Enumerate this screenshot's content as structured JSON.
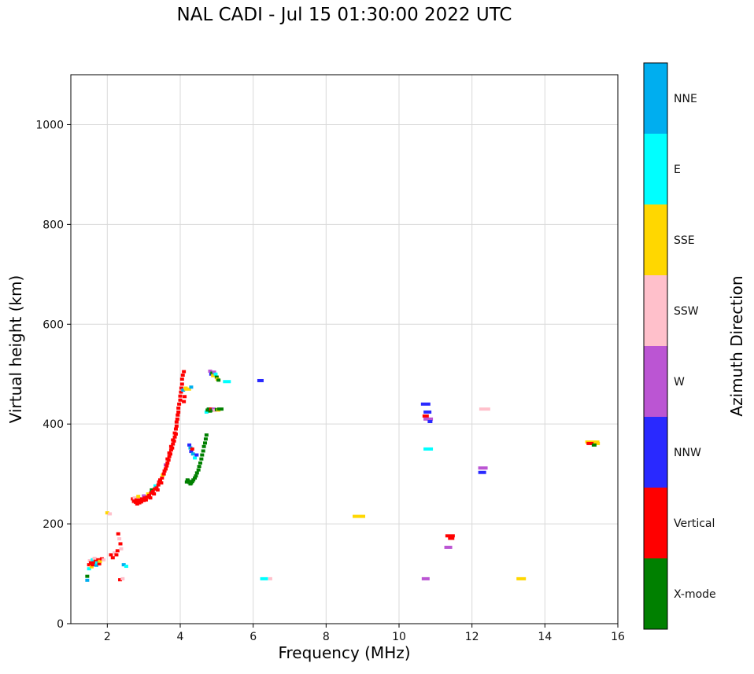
{
  "chart_data": {
    "type": "scatter",
    "title": "NAL CADI - Jul 15 01:30:00 2022 UTC",
    "xlabel": "Frequency (MHz)",
    "ylabel": "Virtual height (km)",
    "colorbar_title": "Azimuth Direction",
    "xlim": [
      1,
      16
    ],
    "ylim": [
      0,
      1100
    ],
    "xticks": [
      2,
      4,
      6,
      8,
      10,
      12,
      14,
      16
    ],
    "yticks": [
      0,
      200,
      400,
      600,
      800,
      1000
    ],
    "style": {
      "grid": "#d9d9d9",
      "axis": "#000000",
      "background": "#ffffff"
    },
    "categories": [
      {
        "name": "NNE",
        "color": "#00aeef"
      },
      {
        "name": "E",
        "color": "#00ffff"
      },
      {
        "name": "SSE",
        "color": "#ffd700"
      },
      {
        "name": "SSW",
        "color": "#ffc0cb"
      },
      {
        "name": "W",
        "color": "#bb55d3"
      },
      {
        "name": "NNW",
        "color": "#2929ff"
      },
      {
        "name": "Vertical",
        "color": "#ff0000"
      },
      {
        "name": "X-mode",
        "color": "#008000"
      }
    ],
    "points": [
      [
        1.45,
        95,
        "X-mode"
      ],
      [
        1.45,
        87,
        "NNE"
      ],
      [
        1.5,
        118,
        "Vertical"
      ],
      [
        1.5,
        110,
        "E"
      ],
      [
        1.52,
        126,
        "SSW"
      ],
      [
        1.55,
        122,
        "Vertical"
      ],
      [
        1.57,
        114,
        "SSE"
      ],
      [
        1.6,
        128,
        "E"
      ],
      [
        1.6,
        118,
        "Vertical"
      ],
      [
        1.63,
        122,
        "Vertical"
      ],
      [
        1.65,
        131,
        "SSW"
      ],
      [
        1.68,
        125,
        "Vertical"
      ],
      [
        1.7,
        117,
        "NNE"
      ],
      [
        1.72,
        122,
        "E"
      ],
      [
        1.75,
        128,
        "Vertical"
      ],
      [
        1.78,
        120,
        "Vertical"
      ],
      [
        1.8,
        125,
        "SSE"
      ],
      [
        1.85,
        130,
        "Vertical"
      ],
      [
        1.9,
        128,
        "SSW"
      ],
      [
        2.0,
        222,
        "SSE"
      ],
      [
        2.07,
        220,
        "SSW"
      ],
      [
        2.1,
        138,
        "Vertical"
      ],
      [
        2.15,
        132,
        "Vertical"
      ],
      [
        2.2,
        142,
        "SSW"
      ],
      [
        2.25,
        138,
        "Vertical"
      ],
      [
        2.28,
        146,
        "Vertical"
      ],
      [
        2.3,
        180,
        "Vertical"
      ],
      [
        2.33,
        170,
        "SSW"
      ],
      [
        2.36,
        160,
        "Vertical"
      ],
      [
        2.38,
        150,
        "SSW"
      ],
      [
        2.35,
        88,
        "Vertical"
      ],
      [
        2.42,
        90,
        "SSW"
      ],
      [
        2.45,
        118,
        "NNE"
      ],
      [
        2.52,
        115,
        "E"
      ],
      [
        2.7,
        250,
        "Vertical"
      ],
      [
        2.73,
        245,
        "Vertical"
      ],
      [
        2.75,
        252,
        "SSW"
      ],
      [
        2.78,
        243,
        "Vertical"
      ],
      [
        2.8,
        248,
        "Vertical"
      ],
      [
        2.82,
        240,
        "Vertical"
      ],
      [
        2.85,
        246,
        "Vertical"
      ],
      [
        2.85,
        255,
        "SSE"
      ],
      [
        2.88,
        242,
        "Vertical"
      ],
      [
        2.9,
        248,
        "Vertical"
      ],
      [
        2.93,
        244,
        "Vertical"
      ],
      [
        2.95,
        250,
        "Vertical"
      ],
      [
        3.0,
        247,
        "Vertical"
      ],
      [
        3.0,
        256,
        "W"
      ],
      [
        3.03,
        252,
        "Vertical"
      ],
      [
        3.06,
        248,
        "Vertical"
      ],
      [
        3.1,
        254,
        "Vertical"
      ],
      [
        3.12,
        260,
        "SSE"
      ],
      [
        3.15,
        257,
        "Vertical"
      ],
      [
        3.18,
        252,
        "Vertical"
      ],
      [
        3.2,
        262,
        "Vertical"
      ],
      [
        3.22,
        268,
        "X-mode"
      ],
      [
        3.25,
        265,
        "Vertical"
      ],
      [
        3.28,
        260,
        "Vertical"
      ],
      [
        3.3,
        270,
        "Vertical"
      ],
      [
        3.32,
        276,
        "E"
      ],
      [
        3.35,
        272,
        "Vertical"
      ],
      [
        3.38,
        268,
        "Vertical"
      ],
      [
        3.4,
        278,
        "Vertical"
      ],
      [
        3.42,
        284,
        "Vertical"
      ],
      [
        3.45,
        288,
        "Vertical"
      ],
      [
        3.48,
        282,
        "Vertical"
      ],
      [
        3.5,
        292,
        "Vertical"
      ],
      [
        3.52,
        298,
        "SSE"
      ],
      [
        3.55,
        300,
        "Vertical"
      ],
      [
        3.57,
        306,
        "Vertical"
      ],
      [
        3.6,
        310,
        "Vertical"
      ],
      [
        3.6,
        318,
        "W"
      ],
      [
        3.63,
        316,
        "Vertical"
      ],
      [
        3.65,
        322,
        "Vertical"
      ],
      [
        3.65,
        330,
        "Vertical"
      ],
      [
        3.68,
        328,
        "Vertical"
      ],
      [
        3.7,
        335,
        "Vertical"
      ],
      [
        3.7,
        342,
        "Vertical"
      ],
      [
        3.73,
        340,
        "Vertical"
      ],
      [
        3.75,
        348,
        "Vertical"
      ],
      [
        3.75,
        355,
        "Vertical"
      ],
      [
        3.78,
        352,
        "Vertical"
      ],
      [
        3.8,
        360,
        "Vertical"
      ],
      [
        3.8,
        368,
        "Vertical"
      ],
      [
        3.83,
        366,
        "Vertical"
      ],
      [
        3.85,
        374,
        "Vertical"
      ],
      [
        3.85,
        382,
        "Vertical"
      ],
      [
        3.88,
        380,
        "Vertical"
      ],
      [
        3.88,
        390,
        "Vertical"
      ],
      [
        3.9,
        396,
        "Vertical"
      ],
      [
        3.9,
        404,
        "Vertical"
      ],
      [
        3.92,
        410,
        "Vertical"
      ],
      [
        3.93,
        418,
        "Vertical"
      ],
      [
        3.95,
        424,
        "Vertical"
      ],
      [
        3.95,
        432,
        "Vertical"
      ],
      [
        3.97,
        440,
        "Vertical"
      ],
      [
        4.0,
        448,
        "Vertical"
      ],
      [
        4.0,
        456,
        "Vertical"
      ],
      [
        4.02,
        464,
        "Vertical"
      ],
      [
        4.03,
        472,
        "Vertical"
      ],
      [
        4.05,
        480,
        "Vertical"
      ],
      [
        4.05,
        490,
        "Vertical"
      ],
      [
        4.07,
        498,
        "Vertical"
      ],
      [
        4.1,
        505,
        "Vertical"
      ],
      [
        4.1,
        445,
        "Vertical"
      ],
      [
        4.12,
        455,
        "Vertical"
      ],
      [
        4.08,
        468,
        "NNE"
      ],
      [
        4.15,
        472,
        "SSE"
      ],
      [
        4.2,
        470,
        "SSE",
        9
      ],
      [
        4.3,
        474,
        "NNE"
      ],
      [
        4.25,
        358,
        "NNW"
      ],
      [
        4.28,
        352,
        "NNE"
      ],
      [
        4.3,
        345,
        "NNW"
      ],
      [
        4.33,
        350,
        "Vertical"
      ],
      [
        4.35,
        340,
        "NNE"
      ],
      [
        4.4,
        332,
        "E"
      ],
      [
        4.45,
        338,
        "NNW"
      ],
      [
        4.18,
        284,
        "X-mode"
      ],
      [
        4.2,
        288,
        "X-mode"
      ],
      [
        4.22,
        286,
        "X-mode"
      ],
      [
        4.25,
        283,
        "X-mode"
      ],
      [
        4.28,
        280,
        "X-mode"
      ],
      [
        4.3,
        282,
        "X-mode"
      ],
      [
        4.33,
        285,
        "X-mode"
      ],
      [
        4.36,
        288,
        "X-mode"
      ],
      [
        4.4,
        292,
        "X-mode"
      ],
      [
        4.43,
        296,
        "X-mode"
      ],
      [
        4.46,
        302,
        "X-mode"
      ],
      [
        4.5,
        308,
        "X-mode"
      ],
      [
        4.52,
        315,
        "X-mode"
      ],
      [
        4.55,
        322,
        "X-mode"
      ],
      [
        4.58,
        330,
        "X-mode"
      ],
      [
        4.6,
        338,
        "X-mode"
      ],
      [
        4.63,
        346,
        "X-mode"
      ],
      [
        4.65,
        355,
        "X-mode"
      ],
      [
        4.68,
        362,
        "X-mode"
      ],
      [
        4.7,
        370,
        "X-mode"
      ],
      [
        4.72,
        378,
        "X-mode"
      ],
      [
        4.72,
        424,
        "E"
      ],
      [
        4.75,
        428,
        "X-mode"
      ],
      [
        4.78,
        430,
        "X-mode"
      ],
      [
        4.82,
        426,
        "X-mode"
      ],
      [
        4.85,
        430,
        "Vertical"
      ],
      [
        4.88,
        428,
        "X-mode"
      ],
      [
        4.92,
        430,
        "W"
      ],
      [
        4.95,
        427,
        "SSW"
      ],
      [
        5.0,
        429,
        "X-mode"
      ],
      [
        5.05,
        428,
        "SSE"
      ],
      [
        5.1,
        430,
        "X-mode",
        8
      ],
      [
        4.82,
        506,
        "W"
      ],
      [
        4.85,
        500,
        "NNW"
      ],
      [
        4.88,
        502,
        "X-mode"
      ],
      [
        4.9,
        497,
        "SSE"
      ],
      [
        4.93,
        504,
        "W"
      ],
      [
        4.97,
        500,
        "E"
      ],
      [
        5.0,
        494,
        "X-mode"
      ],
      [
        5.02,
        490,
        "SSE"
      ],
      [
        5.05,
        488,
        "X-mode"
      ],
      [
        5.28,
        485,
        "E",
        10
      ],
      [
        6.2,
        487,
        "NNW",
        8
      ],
      [
        6.3,
        90,
        "E",
        10
      ],
      [
        6.47,
        90,
        "SSW",
        5
      ],
      [
        8.9,
        215,
        "SSE",
        16
      ],
      [
        10.73,
        440,
        "NNW",
        12
      ],
      [
        10.78,
        424,
        "NNW",
        10
      ],
      [
        10.73,
        416,
        "Vertical",
        8
      ],
      [
        10.8,
        410,
        "W",
        12
      ],
      [
        10.85,
        405,
        "NNW",
        6
      ],
      [
        10.8,
        350,
        "E",
        12
      ],
      [
        10.73,
        90,
        "W",
        10
      ],
      [
        11.4,
        176,
        "Vertical",
        12
      ],
      [
        11.43,
        171,
        "Vertical",
        8
      ],
      [
        11.35,
        153,
        "W",
        10
      ],
      [
        12.35,
        430,
        "SSW",
        14
      ],
      [
        12.3,
        312,
        "W",
        12
      ],
      [
        12.28,
        303,
        "NNW",
        10
      ],
      [
        13.35,
        90,
        "SSE",
        12
      ],
      [
        15.3,
        364,
        "SSE",
        18
      ],
      [
        15.25,
        361,
        "Vertical",
        10
      ],
      [
        15.42,
        361,
        "SSE",
        8
      ],
      [
        15.35,
        358,
        "X-mode",
        6
      ]
    ]
  }
}
